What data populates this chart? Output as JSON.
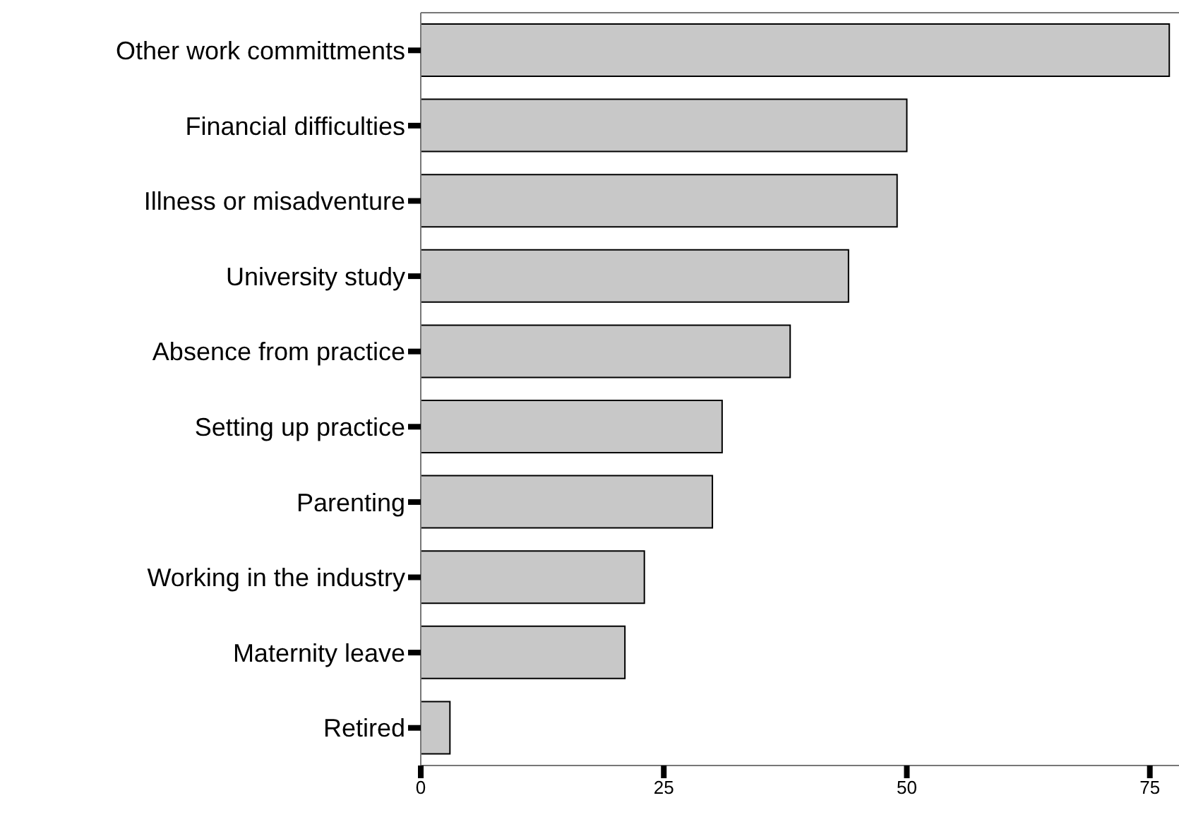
{
  "chart_data": {
    "type": "bar",
    "orientation": "horizontal",
    "categories": [
      "Other work committments",
      "Financial difficulties",
      "Illness or misadventure",
      "University study",
      "Absence from practice",
      "Setting up practice",
      "Parenting",
      "Working in the industry",
      "Maternity leave",
      "Retired"
    ],
    "values": [
      77,
      50,
      49,
      44,
      38,
      31,
      30,
      23,
      21,
      3
    ],
    "color": "#c8c8c8",
    "xlim": [
      0,
      78
    ],
    "xticks": [
      0,
      25,
      50,
      75
    ],
    "grid": false
  }
}
